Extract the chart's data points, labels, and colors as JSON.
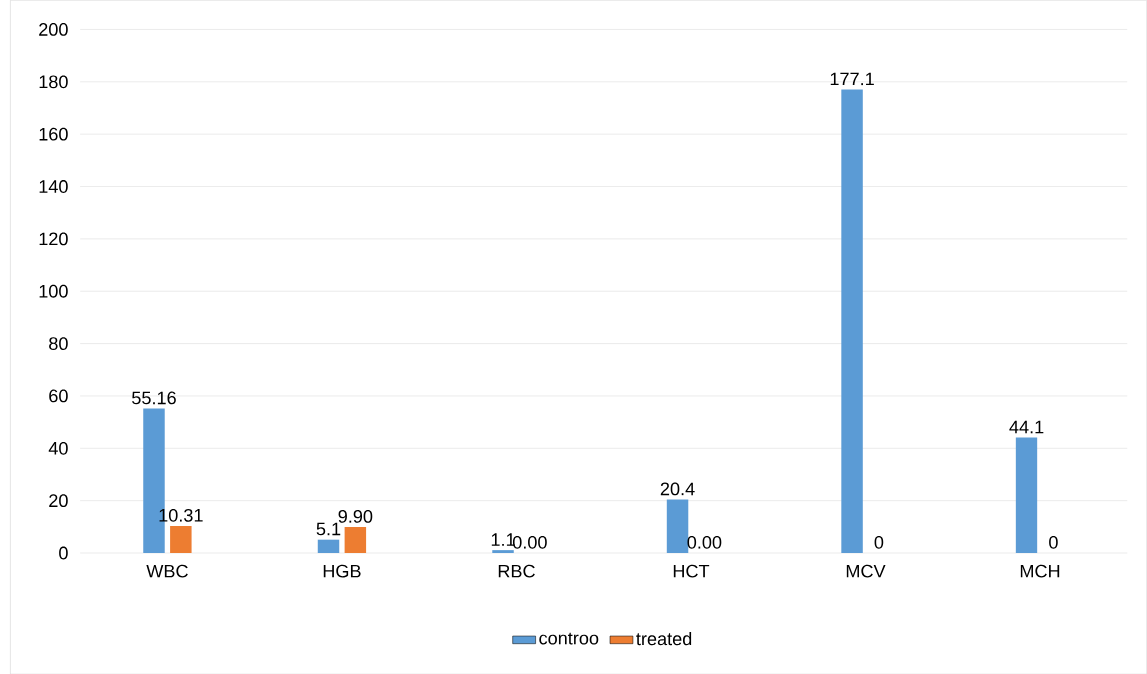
{
  "chart_data": {
    "type": "bar",
    "categories": [
      "WBC",
      "HGB",
      "RBC",
      "HCT",
      "MCV",
      "MCH"
    ],
    "series": [
      {
        "name": "controo",
        "color": "#5b9bd5",
        "values": [
          55.16,
          5.1,
          1.1,
          20.4,
          177.1,
          44.1
        ],
        "value_labels": [
          "55.16",
          "5.1",
          "1.1",
          "20.4",
          "177.1",
          "44.1"
        ]
      },
      {
        "name": "treated",
        "color": "#ed7d31",
        "values": [
          10.31,
          9.9,
          0,
          0,
          0,
          0
        ],
        "value_labels": [
          "10.31",
          "9.90",
          "0.00",
          "0.00",
          "0",
          "0"
        ]
      }
    ],
    "ylim": [
      0,
      200
    ],
    "yticks": [
      0,
      20,
      40,
      60,
      80,
      100,
      120,
      140,
      160,
      180,
      200
    ],
    "grid": "y",
    "legend": "bottom"
  }
}
